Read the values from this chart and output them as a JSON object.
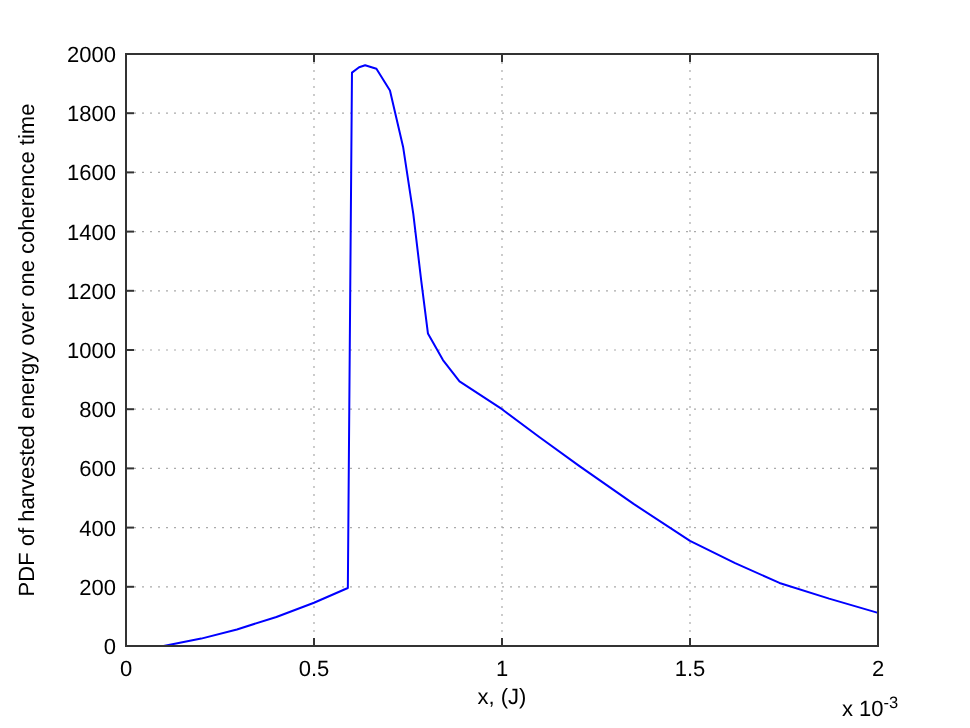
{
  "chart_data": {
    "type": "line",
    "xlabel": "x, (J)",
    "ylabel": "PDF of harvested energy over one coherence time",
    "annotations": [
      "x 10$^{-3}$"
    ],
    "xlim": [
      0,
      2
    ],
    "xticks": [
      0,
      0.5,
      1,
      1.5,
      2
    ],
    "ylim": [
      0,
      2000
    ],
    "yticks": [
      0,
      200,
      400,
      600,
      800,
      1000,
      1200,
      1400,
      1600,
      1800,
      2000
    ],
    "grid": true,
    "marker": "none",
    "line_style": "solid",
    "series": [
      {
        "color": "#0000ff",
        "x": [
          0.1,
          0.2,
          0.295,
          0.4,
          0.5,
          0.59,
          0.601,
          0.62,
          0.636,
          0.666,
          0.702,
          0.737,
          0.764,
          0.785,
          0.803,
          0.843,
          0.887,
          1.0,
          1.1,
          1.207,
          1.35,
          1.5,
          1.62,
          1.738,
          1.87,
          2.0
        ],
        "values": [
          0,
          25,
          56,
          98,
          146,
          196,
          1937,
          1955,
          1962,
          1950,
          1877,
          1686,
          1461,
          1236,
          1056,
          966,
          894,
          800,
          705,
          607,
          480,
          355,
          280,
          213,
          160,
          112
        ]
      }
    ]
  }
}
